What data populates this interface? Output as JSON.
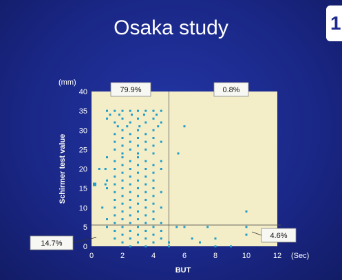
{
  "slide": {
    "title": "Osaka study",
    "corner_badge": "1"
  },
  "chart_data": {
    "type": "scatter",
    "title": "Osaka study",
    "xlabel": "BUT",
    "ylabel": "Schirmer test value",
    "x_unit": "(Sec)",
    "y_unit": "(mm)",
    "xlim": [
      0,
      12
    ],
    "ylim": [
      0,
      40
    ],
    "x_ticks": [
      "0",
      "2",
      "4",
      "6",
      "8",
      "10",
      "12"
    ],
    "y_ticks": [
      "0",
      "5",
      "10",
      "15",
      "20",
      "25",
      "30",
      "35",
      "40"
    ],
    "threshold_x": 5,
    "threshold_y": 5.5,
    "colors": {
      "plot_bg": "#f3eec8",
      "point": "#1f9cc9",
      "background": "#1c2a8c",
      "text": "#ffffff"
    },
    "quadrant_labels": {
      "upper_left": "79.9%",
      "upper_right": "0.8%",
      "lower_left": "14.7%",
      "lower_right": "4.6%"
    },
    "points": [
      [
        0.2,
        16
      ],
      [
        1,
        35
      ],
      [
        1.5,
        35
      ],
      [
        2,
        35
      ],
      [
        2.5,
        35
      ],
      [
        3,
        35
      ],
      [
        3.5,
        35
      ],
      [
        4,
        35
      ],
      [
        4.5,
        35
      ],
      [
        1.2,
        34
      ],
      [
        1.8,
        34
      ],
      [
        2.6,
        34
      ],
      [
        3.4,
        34
      ],
      [
        4.2,
        34
      ],
      [
        1,
        33
      ],
      [
        2,
        33
      ],
      [
        3,
        33
      ],
      [
        4,
        33
      ],
      [
        1.5,
        32
      ],
      [
        2.5,
        32
      ],
      [
        3.5,
        32
      ],
      [
        4.5,
        32
      ],
      [
        1.7,
        31
      ],
      [
        2.3,
        31
      ],
      [
        3.1,
        31
      ],
      [
        4.3,
        31
      ],
      [
        6,
        31
      ],
      [
        2,
        30
      ],
      [
        3,
        30
      ],
      [
        4,
        30
      ],
      [
        1.5,
        29
      ],
      [
        2.5,
        29
      ],
      [
        3.5,
        29
      ],
      [
        2,
        28
      ],
      [
        3,
        28
      ],
      [
        4,
        28
      ],
      [
        1.5,
        27
      ],
      [
        2.5,
        27
      ],
      [
        3.5,
        27
      ],
      [
        4.5,
        27
      ],
      [
        2,
        26
      ],
      [
        3,
        26
      ],
      [
        4,
        26
      ],
      [
        1.5,
        25
      ],
      [
        2.5,
        25
      ],
      [
        3.5,
        25
      ],
      [
        2,
        24
      ],
      [
        3,
        24
      ],
      [
        4,
        24
      ],
      [
        5.6,
        24
      ],
      [
        1,
        23
      ],
      [
        2,
        23
      ],
      [
        3,
        23
      ],
      [
        1.5,
        22
      ],
      [
        2.5,
        22
      ],
      [
        3.5,
        22
      ],
      [
        4.5,
        22
      ],
      [
        2,
        21
      ],
      [
        3,
        21
      ],
      [
        4,
        21
      ],
      [
        0.5,
        20
      ],
      [
        0.9,
        20
      ],
      [
        1.5,
        20
      ],
      [
        2.5,
        20
      ],
      [
        3.5,
        20
      ],
      [
        4.5,
        20
      ],
      [
        2,
        19
      ],
      [
        3,
        19
      ],
      [
        4,
        19
      ],
      [
        1.5,
        18
      ],
      [
        2.5,
        18
      ],
      [
        3.5,
        18
      ],
      [
        1,
        17
      ],
      [
        2,
        17
      ],
      [
        3,
        17
      ],
      [
        4,
        17
      ],
      [
        0.9,
        16
      ],
      [
        1.5,
        16
      ],
      [
        2.5,
        16
      ],
      [
        3.5,
        16
      ],
      [
        1,
        15
      ],
      [
        2,
        15
      ],
      [
        3,
        15
      ],
      [
        4,
        15
      ],
      [
        1.5,
        14
      ],
      [
        2.5,
        14
      ],
      [
        3.5,
        14
      ],
      [
        4.5,
        14
      ],
      [
        2,
        13
      ],
      [
        3,
        13
      ],
      [
        4,
        13
      ],
      [
        1.5,
        12
      ],
      [
        2.5,
        12
      ],
      [
        3.5,
        12
      ],
      [
        2,
        11
      ],
      [
        3,
        11
      ],
      [
        4,
        11
      ],
      [
        0.7,
        10
      ],
      [
        1.5,
        10
      ],
      [
        2.5,
        10
      ],
      [
        3.5,
        10
      ],
      [
        4.5,
        10
      ],
      [
        2,
        9
      ],
      [
        3,
        9
      ],
      [
        4,
        9
      ],
      [
        10,
        9
      ],
      [
        1.5,
        8
      ],
      [
        2.5,
        8
      ],
      [
        3.5,
        8
      ],
      [
        1,
        7
      ],
      [
        2,
        7
      ],
      [
        3,
        7
      ],
      [
        4,
        7
      ],
      [
        1.5,
        6
      ],
      [
        2.5,
        6
      ],
      [
        3.5,
        6
      ],
      [
        4.5,
        6
      ],
      [
        1,
        5
      ],
      [
        2,
        5
      ],
      [
        3,
        5
      ],
      [
        4,
        5
      ],
      [
        5.5,
        5
      ],
      [
        6,
        5
      ],
      [
        7.5,
        5
      ],
      [
        10,
        5
      ],
      [
        1.5,
        4
      ],
      [
        2.5,
        4
      ],
      [
        3.5,
        4
      ],
      [
        4.5,
        4
      ],
      [
        2,
        3
      ],
      [
        3,
        3
      ],
      [
        4,
        3
      ],
      [
        10,
        3
      ],
      [
        1.5,
        2
      ],
      [
        2.5,
        2
      ],
      [
        3.5,
        2
      ],
      [
        4.5,
        2
      ],
      [
        6.5,
        2
      ],
      [
        8,
        2
      ],
      [
        2,
        1
      ],
      [
        3,
        1
      ],
      [
        4,
        1
      ],
      [
        5,
        1
      ],
      [
        7,
        1
      ],
      [
        2.5,
        0
      ],
      [
        3.5,
        0
      ],
      [
        5,
        0
      ],
      [
        8,
        0
      ],
      [
        9,
        0
      ]
    ]
  }
}
